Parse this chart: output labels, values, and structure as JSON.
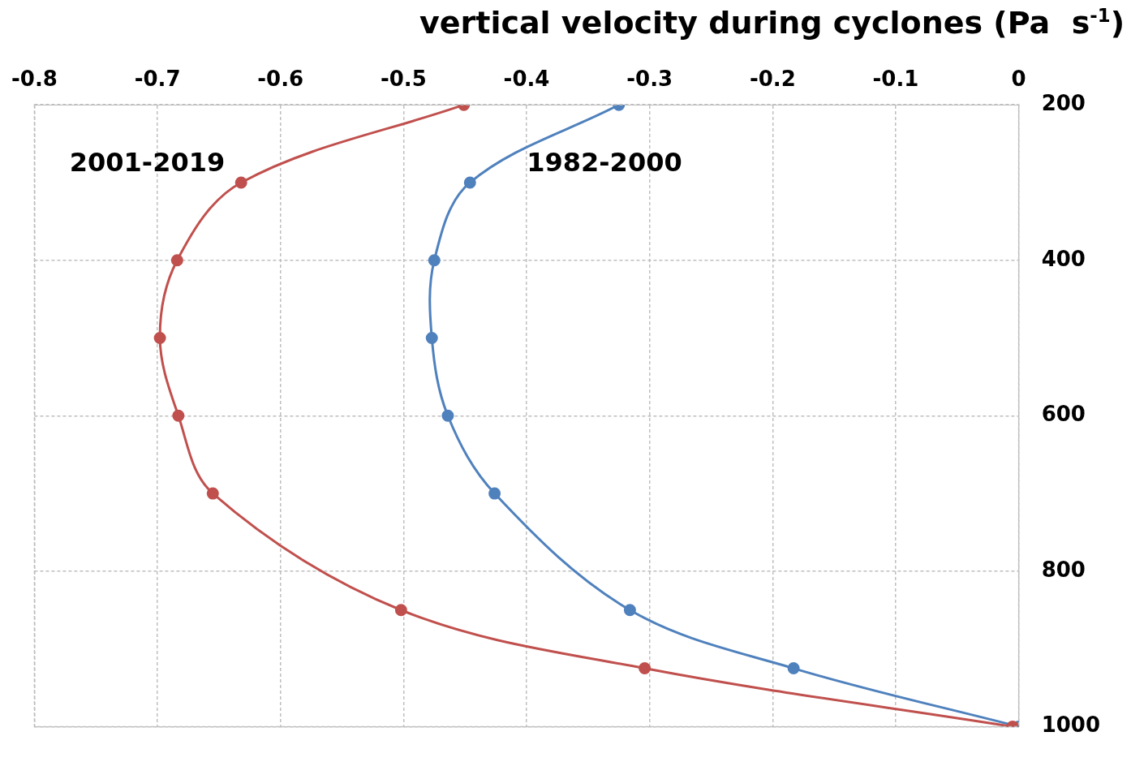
{
  "chart_data": {
    "type": "line",
    "title": "vertical velocity during cyclones (Pa  s$^{-1}$)",
    "xlim": [
      -0.8,
      0
    ],
    "xticks": [
      -0.8,
      -0.7,
      -0.6,
      -0.5,
      -0.4,
      -0.3,
      -0.2,
      -0.1,
      0
    ],
    "ylim": [
      1000,
      200
    ],
    "yticks": [
      200,
      400,
      600,
      800,
      1000
    ],
    "grid": true,
    "marker": "circle",
    "legend": false,
    "series": [
      {
        "name": "2001-2019",
        "color": "#c0504d",
        "x": [
          -0.451,
          -0.632,
          -0.684,
          -0.698,
          -0.683,
          -0.655,
          -0.502,
          -0.304,
          -0.005
        ],
        "values": [
          200,
          300,
          400,
          500,
          600,
          700,
          850,
          925,
          1000
        ]
      },
      {
        "name": "1982-2000",
        "color": "#4f81bd",
        "x": [
          -0.325,
          -0.446,
          -0.475,
          -0.477,
          -0.464,
          -0.426,
          -0.316,
          -0.183,
          0
        ],
        "values": [
          200,
          300,
          400,
          500,
          600,
          700,
          850,
          925,
          1000
        ]
      }
    ]
  }
}
